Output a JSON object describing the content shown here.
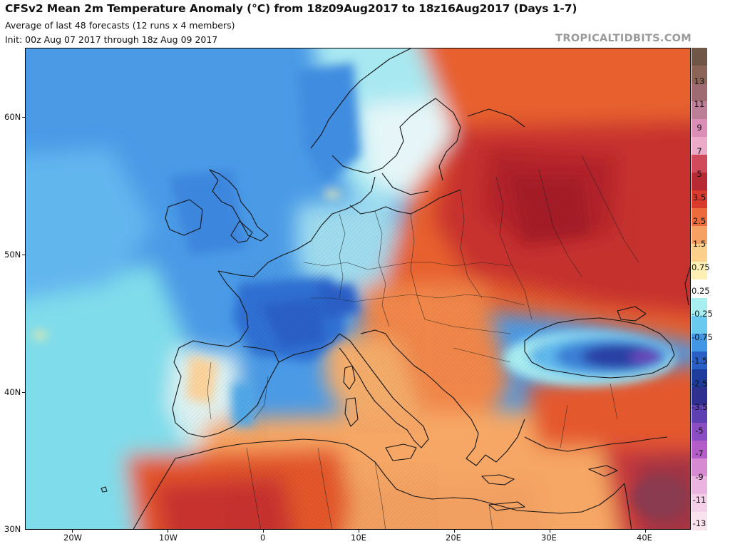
{
  "header": {
    "title": "CFSv2 Mean 2m Temperature Anomaly (°C) from 18z09Aug2017 to 18z16Aug2017 (Days 1-7)",
    "subtitle1": "Average of last 48 forecasts (12 runs x 4 members)",
    "subtitle2": "Init: 00z Aug 07 2017 through 18z Aug 09 2017",
    "brand": "TROPICALTIDBITS.COM"
  },
  "map": {
    "lat_labels": [
      "60N",
      "50N",
      "40N",
      "30N"
    ],
    "lon_labels": [
      "20W",
      "10W",
      "0",
      "10E",
      "20E",
      "30E",
      "40E"
    ]
  },
  "colorbar": {
    "labels": [
      "13",
      "11",
      "9",
      "7",
      "5",
      "3.5",
      "2.5",
      "1.5",
      "0.75",
      "0.25",
      "-0.25",
      "-0.75",
      "-1.5",
      "-2.5",
      "-3.5",
      "-5",
      "-7",
      "-9",
      "-11",
      "-13"
    ],
    "colors": [
      "#6f5646",
      "#8b6457",
      "#9e6b72",
      "#bd7e97",
      "#db8fb6",
      "#ecaac9",
      "#d04a5c",
      "#b72a33",
      "#d83a2c",
      "#ec6a3c",
      "#f7a063",
      "#fccf8b",
      "#fdf0b2",
      "#ffffff",
      "#a6eef0",
      "#69c9ee",
      "#4197e4",
      "#2a5fc8",
      "#1e3c9c",
      "#2e2f8e",
      "#5e40b3",
      "#8c4cc4",
      "#b45dc9",
      "#d68ad1",
      "#ebb3e0",
      "#f4d0e8",
      "#f8e2ec"
    ]
  }
}
